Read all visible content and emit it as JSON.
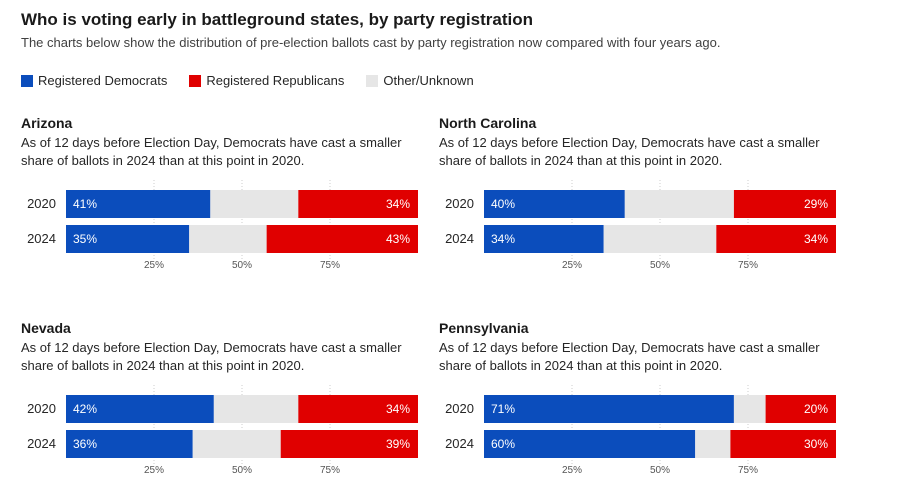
{
  "header": {
    "title": "Who is voting early in battleground states, by party registration",
    "subtitle": "The charts below show the distribution of pre-election ballots cast by party registration now compared with four years ago."
  },
  "legend": [
    {
      "label": "Registered Democrats",
      "color": "#0b4dbc"
    },
    {
      "label": "Registered Republicans",
      "color": "#e00000"
    },
    {
      "label": "Other/Unknown",
      "color": "#e6e6e6"
    }
  ],
  "chart_data": [
    {
      "type": "bar",
      "stacked": true,
      "orientation": "horizontal",
      "title": "Arizona",
      "note": "As of 12 days before Election Day, Democrats have cast a smaller share of ballots in 2024 than at this point in 2020.",
      "categories": [
        "2020",
        "2024"
      ],
      "series": [
        {
          "name": "Registered Democrats",
          "values": [
            41,
            35
          ],
          "labels": [
            "41%",
            "35%"
          ]
        },
        {
          "name": "Other/Unknown",
          "values": [
            25,
            22
          ]
        },
        {
          "name": "Registered Republicans",
          "values": [
            34,
            43
          ],
          "labels": [
            "34%",
            "43%"
          ]
        }
      ],
      "xlim": [
        0,
        100
      ],
      "xticks": [
        "25%",
        "50%",
        "75%"
      ]
    },
    {
      "type": "bar",
      "stacked": true,
      "orientation": "horizontal",
      "title": "North Carolina",
      "note": "As of 12 days before Election Day, Democrats have cast a smaller share of ballots in 2024 than at this point in 2020.",
      "categories": [
        "2020",
        "2024"
      ],
      "series": [
        {
          "name": "Registered Democrats",
          "values": [
            40,
            34
          ],
          "labels": [
            "40%",
            "34%"
          ]
        },
        {
          "name": "Other/Unknown",
          "values": [
            31,
            32
          ]
        },
        {
          "name": "Registered Republicans",
          "values": [
            29,
            34
          ],
          "labels": [
            "29%",
            "34%"
          ]
        }
      ],
      "xlim": [
        0,
        100
      ],
      "xticks": [
        "25%",
        "50%",
        "75%"
      ]
    },
    {
      "type": "bar",
      "stacked": true,
      "orientation": "horizontal",
      "title": "Nevada",
      "note": "As of 12 days before Election Day, Democrats have cast a smaller share of ballots in 2024 than at this point in 2020.",
      "categories": [
        "2020",
        "2024"
      ],
      "series": [
        {
          "name": "Registered Democrats",
          "values": [
            42,
            36
          ],
          "labels": [
            "42%",
            "36%"
          ]
        },
        {
          "name": "Other/Unknown",
          "values": [
            24,
            25
          ]
        },
        {
          "name": "Registered Republicans",
          "values": [
            34,
            39
          ],
          "labels": [
            "34%",
            "39%"
          ]
        }
      ],
      "xlim": [
        0,
        100
      ],
      "xticks": [
        "25%",
        "50%",
        "75%"
      ]
    },
    {
      "type": "bar",
      "stacked": true,
      "orientation": "horizontal",
      "title": "Pennsylvania",
      "note": "As of 12 days before Election Day, Democrats have cast a smaller share of ballots in 2024 than at this point in 2020.",
      "categories": [
        "2020",
        "2024"
      ],
      "series": [
        {
          "name": "Registered Democrats",
          "values": [
            71,
            60
          ],
          "labels": [
            "71%",
            "60%"
          ]
        },
        {
          "name": "Other/Unknown",
          "values": [
            9,
            10
          ]
        },
        {
          "name": "Registered Republicans",
          "values": [
            20,
            30
          ],
          "labels": [
            "20%",
            "30%"
          ]
        }
      ],
      "xlim": [
        0,
        100
      ],
      "xticks": [
        "25%",
        "50%",
        "75%"
      ]
    }
  ]
}
